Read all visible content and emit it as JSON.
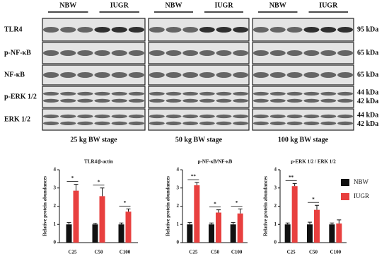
{
  "blots": {
    "groups": [
      "NBW",
      "IUGR"
    ],
    "rows": [
      {
        "label": "TLR4",
        "kda": [
          "95 kDa"
        ]
      },
      {
        "label": "p-NF-κB",
        "kda": [
          "65 kDa"
        ]
      },
      {
        "label": "NF-κB",
        "kda": [
          "65 kDa"
        ]
      },
      {
        "label": "p-ERK 1/2",
        "kda": [
          "44 kDa",
          "42 kDa"
        ]
      },
      {
        "label": "ERK 1/2",
        "kda": [
          "44 kDa",
          "42 kDa"
        ]
      }
    ],
    "stages": [
      "25 kg BW stage",
      "50 kg BW stage",
      "100 kg BW stage"
    ]
  },
  "chart_data": [
    {
      "type": "bar",
      "title": "TLR4/β-actin",
      "y_label": "Relative protein abundances",
      "categories": [
        "C25",
        "C50",
        "C100"
      ],
      "series": [
        {
          "color": "#111111",
          "values": [
            1.0,
            1.0,
            1.0
          ],
          "errors": [
            0.1,
            0.06,
            0.08
          ]
        },
        {
          "color": "#e8403f",
          "values": [
            2.85,
            2.55,
            1.7
          ],
          "errors": [
            0.35,
            0.45,
            0.15
          ]
        }
      ],
      "annotations": [
        "*",
        "*",
        "*"
      ],
      "ylim": [
        0,
        4
      ],
      "yticks": [
        0,
        1,
        2,
        3,
        4
      ]
    },
    {
      "type": "bar",
      "title": "p-NF-κB/NF-κB",
      "y_label": "Relative protein abundances",
      "categories": [
        "C25",
        "C50",
        "C100"
      ],
      "series": [
        {
          "color": "#111111",
          "values": [
            1.0,
            1.0,
            1.0
          ],
          "errors": [
            0.1,
            0.08,
            0.1
          ]
        },
        {
          "color": "#e8403f",
          "values": [
            3.15,
            1.65,
            1.6
          ],
          "errors": [
            0.15,
            0.15,
            0.25
          ]
        }
      ],
      "annotations": [
        "**",
        "*",
        "*"
      ],
      "ylim": [
        0,
        4
      ],
      "yticks": [
        0,
        1,
        2,
        3,
        4
      ]
    },
    {
      "type": "bar",
      "title": "p-ERK 1/2 / ERK 1/2",
      "y_label": "Relative protein abundances",
      "categories": [
        "C25",
        "C50",
        "C100"
      ],
      "series": [
        {
          "name": "NBW",
          "color": "#111111",
          "values": [
            1.0,
            1.0,
            1.0
          ],
          "errors": [
            0.08,
            0.12,
            0.08
          ]
        },
        {
          "name": "IUGR",
          "color": "#e8403f",
          "values": [
            3.1,
            1.8,
            1.05
          ],
          "errors": [
            0.15,
            0.25,
            0.2
          ]
        }
      ],
      "annotations": [
        "**",
        "*",
        null
      ],
      "ylim": [
        0,
        4
      ],
      "yticks": [
        0,
        1,
        2,
        3,
        4
      ]
    }
  ]
}
